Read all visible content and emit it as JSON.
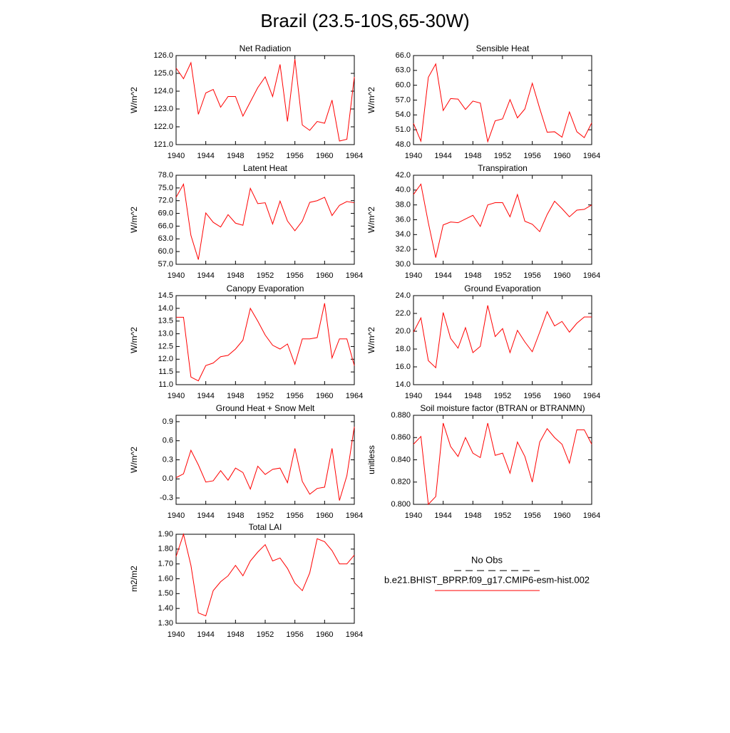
{
  "title": "Brazil (23.5-10S,65-30W)",
  "legend": [
    {
      "name": "No Obs",
      "color": "#000000",
      "dash": true
    },
    {
      "name": "b.e21.BHIST_BPRP.f09_g17.CMIP6-esm-hist.002",
      "color": "#ff0000",
      "dash": false
    }
  ],
  "chart_data": [
    {
      "type": "line",
      "title": "Net Radiation",
      "ylabel": "W/m^2",
      "x": [
        1940,
        1941,
        1942,
        1943,
        1944,
        1945,
        1946,
        1947,
        1948,
        1949,
        1950,
        1951,
        1952,
        1953,
        1954,
        1955,
        1956,
        1957,
        1958,
        1959,
        1960,
        1961,
        1962,
        1963,
        1964
      ],
      "series": [
        {
          "color": "#ff0000",
          "values": [
            125.3,
            124.7,
            125.6,
            122.7,
            123.9,
            124.1,
            123.1,
            123.7,
            123.7,
            122.6,
            123.4,
            124.2,
            124.8,
            123.7,
            125.5,
            122.3,
            125.8,
            122.1,
            121.8,
            122.3,
            122.2,
            123.5,
            121.2,
            121.3,
            124.8
          ]
        }
      ],
      "xlim": [
        1940,
        1964
      ],
      "xticks": [
        1940,
        1944,
        1948,
        1952,
        1956,
        1960,
        1964
      ],
      "ylim": [
        121,
        126
      ],
      "yticks": [
        {
          "value": 121,
          "label": "121.0"
        },
        {
          "value": 122,
          "label": "122.0"
        },
        {
          "value": 123,
          "label": "123.0"
        },
        {
          "value": 124,
          "label": "124.0"
        },
        {
          "value": 125,
          "label": "125.0"
        },
        {
          "value": 126,
          "label": "126.0"
        }
      ]
    },
    {
      "type": "line",
      "title": "Sensible Heat",
      "ylabel": "W/m^2",
      "x": [
        1940,
        1941,
        1942,
        1943,
        1944,
        1945,
        1946,
        1947,
        1948,
        1949,
        1950,
        1951,
        1952,
        1953,
        1954,
        1955,
        1956,
        1957,
        1958,
        1959,
        1960,
        1961,
        1962,
        1963,
        1964
      ],
      "series": [
        {
          "color": "#ff0000",
          "values": [
            52.3,
            48.7,
            61.6,
            64.3,
            54.9,
            57.3,
            57.2,
            55.1,
            56.8,
            56.4,
            48.6,
            52.8,
            53.2,
            57.1,
            53.4,
            55.2,
            60.4,
            55.3,
            50.5,
            50.6,
            49.5,
            54.6,
            50.6,
            49.4,
            52.4
          ]
        }
      ],
      "xlim": [
        1940,
        1964
      ],
      "xticks": [
        1940,
        1944,
        1948,
        1952,
        1956,
        1960,
        1964
      ],
      "ylim": [
        48,
        66
      ],
      "yticks": [
        {
          "value": 48,
          "label": "48.0"
        },
        {
          "value": 51,
          "label": "51.0"
        },
        {
          "value": 54,
          "label": "54.0"
        },
        {
          "value": 57,
          "label": "57.0"
        },
        {
          "value": 60,
          "label": "60.0"
        },
        {
          "value": 63,
          "label": "63.0"
        },
        {
          "value": 66,
          "label": "66.0"
        }
      ]
    },
    {
      "type": "line",
      "title": "Latent Heat",
      "ylabel": "W/m^2",
      "x": [
        1940,
        1941,
        1942,
        1943,
        1944,
        1945,
        1946,
        1947,
        1948,
        1949,
        1950,
        1951,
        1952,
        1953,
        1954,
        1955,
        1956,
        1957,
        1958,
        1959,
        1960,
        1961,
        1962,
        1963,
        1964
      ],
      "series": [
        {
          "color": "#ff0000",
          "values": [
            72.8,
            75.9,
            63.8,
            58.1,
            69.1,
            66.9,
            65.8,
            68.7,
            66.7,
            66.2,
            74.9,
            71.3,
            71.5,
            66.5,
            71.9,
            67.2,
            64.9,
            67.2,
            71.6,
            72.0,
            72.8,
            68.5,
            70.9,
            71.8,
            71.5
          ]
        }
      ],
      "xlim": [
        1940,
        1964
      ],
      "xticks": [
        1940,
        1944,
        1948,
        1952,
        1956,
        1960,
        1964
      ],
      "ylim": [
        57,
        78
      ],
      "yticks": [
        {
          "value": 57,
          "label": "57.0"
        },
        {
          "value": 60,
          "label": "60.0"
        },
        {
          "value": 63,
          "label": "63.0"
        },
        {
          "value": 66,
          "label": "66.0"
        },
        {
          "value": 69,
          "label": "69.0"
        },
        {
          "value": 72,
          "label": "72.0"
        },
        {
          "value": 75,
          "label": "75.0"
        },
        {
          "value": 78,
          "label": "78.0"
        }
      ]
    },
    {
      "type": "line",
      "title": "Transpiration",
      "ylabel": "W/m^2",
      "x": [
        1940,
        1941,
        1942,
        1943,
        1944,
        1945,
        1946,
        1947,
        1948,
        1949,
        1950,
        1951,
        1952,
        1953,
        1954,
        1955,
        1956,
        1957,
        1958,
        1959,
        1960,
        1961,
        1962,
        1963,
        1964
      ],
      "series": [
        {
          "color": "#ff0000",
          "values": [
            39.4,
            40.8,
            35.6,
            30.9,
            35.3,
            35.7,
            35.6,
            36.1,
            36.6,
            35.1,
            38.0,
            38.3,
            38.3,
            36.4,
            39.4,
            35.8,
            35.4,
            34.4,
            36.7,
            38.5,
            37.5,
            36.4,
            37.3,
            37.4,
            38.0
          ]
        }
      ],
      "xlim": [
        1940,
        1964
      ],
      "xticks": [
        1940,
        1944,
        1948,
        1952,
        1956,
        1960,
        1964
      ],
      "ylim": [
        30,
        42
      ],
      "yticks": [
        {
          "value": 30,
          "label": "30.0"
        },
        {
          "value": 32,
          "label": "32.0"
        },
        {
          "value": 34,
          "label": "34.0"
        },
        {
          "value": 36,
          "label": "36.0"
        },
        {
          "value": 38,
          "label": "38.0"
        },
        {
          "value": 40,
          "label": "40.0"
        },
        {
          "value": 42,
          "label": "42.0"
        }
      ]
    },
    {
      "type": "line",
      "title": "Canopy Evaporation",
      "ylabel": "W/m^2",
      "x": [
        1940,
        1941,
        1942,
        1943,
        1944,
        1945,
        1946,
        1947,
        1948,
        1949,
        1950,
        1951,
        1952,
        1953,
        1954,
        1955,
        1956,
        1957,
        1958,
        1959,
        1960,
        1961,
        1962,
        1963,
        1964
      ],
      "series": [
        {
          "color": "#ff0000",
          "values": [
            13.65,
            13.65,
            11.3,
            11.15,
            11.75,
            11.85,
            12.1,
            12.15,
            12.4,
            12.75,
            14.0,
            13.5,
            12.95,
            12.55,
            12.4,
            12.6,
            11.8,
            12.8,
            12.8,
            12.85,
            14.2,
            12.05,
            12.8,
            12.8,
            11.75
          ]
        }
      ],
      "xlim": [
        1940,
        1964
      ],
      "xticks": [
        1940,
        1944,
        1948,
        1952,
        1956,
        1960,
        1964
      ],
      "ylim": [
        11,
        14.5
      ],
      "yticks": [
        {
          "value": 11,
          "label": "11.0"
        },
        11.5,
        {
          "value": 12,
          "label": "12.0"
        },
        12.5,
        {
          "value": 13,
          "label": "13.0"
        },
        13.5,
        {
          "value": 14,
          "label": "14.0"
        },
        14.5
      ]
    },
    {
      "type": "line",
      "title": "Ground Evaporation",
      "ylabel": "W/m^2",
      "x": [
        1940,
        1941,
        1942,
        1943,
        1944,
        1945,
        1946,
        1947,
        1948,
        1949,
        1950,
        1951,
        1952,
        1953,
        1954,
        1955,
        1956,
        1957,
        1958,
        1959,
        1960,
        1961,
        1962,
        1963,
        1964
      ],
      "series": [
        {
          "color": "#ff0000",
          "values": [
            19.9,
            21.5,
            16.7,
            15.9,
            22.1,
            19.2,
            18.1,
            20.4,
            17.6,
            18.3,
            22.9,
            19.4,
            20.3,
            17.6,
            20.1,
            18.8,
            17.7,
            19.9,
            22.2,
            20.6,
            21.1,
            19.9,
            20.9,
            21.6,
            21.6
          ]
        }
      ],
      "xlim": [
        1940,
        1964
      ],
      "xticks": [
        1940,
        1944,
        1948,
        1952,
        1956,
        1960,
        1964
      ],
      "ylim": [
        14,
        24
      ],
      "yticks": [
        {
          "value": 14,
          "label": "14.0"
        },
        {
          "value": 16,
          "label": "16.0"
        },
        {
          "value": 18,
          "label": "18.0"
        },
        {
          "value": 20,
          "label": "20.0"
        },
        {
          "value": 22,
          "label": "22.0"
        },
        {
          "value": 24,
          "label": "24.0"
        }
      ]
    },
    {
      "type": "line",
      "title": "Ground Heat + Snow Melt",
      "ylabel": "W/m^2",
      "x": [
        1940,
        1941,
        1942,
        1943,
        1944,
        1945,
        1946,
        1947,
        1948,
        1949,
        1950,
        1951,
        1952,
        1953,
        1954,
        1955,
        1956,
        1957,
        1958,
        1959,
        1960,
        1961,
        1962,
        1963,
        1964
      ],
      "series": [
        {
          "color": "#ff0000",
          "values": [
            0.02,
            0.08,
            0.45,
            0.22,
            -0.05,
            -0.03,
            0.13,
            -0.02,
            0.17,
            0.1,
            -0.16,
            0.2,
            0.07,
            0.15,
            0.17,
            -0.06,
            0.48,
            -0.04,
            -0.24,
            -0.15,
            -0.13,
            0.48,
            -0.34,
            0.05,
            0.82
          ]
        }
      ],
      "xlim": [
        1940,
        1964
      ],
      "xticks": [
        1940,
        1944,
        1948,
        1952,
        1956,
        1960,
        1964
      ],
      "ylim": [
        -0.4,
        1.0
      ],
      "yticks": [
        -0.3,
        {
          "value": 0,
          "label": "0.0"
        },
        0.3,
        0.6,
        0.9
      ]
    },
    {
      "type": "line",
      "title": "Soil moisture factor (BTRAN or BTRANMN)",
      "ylabel": "unitless",
      "x": [
        1940,
        1941,
        1942,
        1943,
        1944,
        1945,
        1946,
        1947,
        1948,
        1949,
        1950,
        1951,
        1952,
        1953,
        1954,
        1955,
        1956,
        1957,
        1958,
        1959,
        1960,
        1961,
        1962,
        1963,
        1964
      ],
      "series": [
        {
          "color": "#ff0000",
          "values": [
            0.854,
            0.861,
            0.8,
            0.807,
            0.873,
            0.852,
            0.843,
            0.86,
            0.846,
            0.842,
            0.873,
            0.844,
            0.846,
            0.828,
            0.856,
            0.843,
            0.82,
            0.856,
            0.868,
            0.86,
            0.854,
            0.837,
            0.867,
            0.867,
            0.854
          ]
        }
      ],
      "xlim": [
        1940,
        1964
      ],
      "xticks": [
        1940,
        1944,
        1948,
        1952,
        1956,
        1960,
        1964
      ],
      "ylim": [
        0.8,
        0.88
      ],
      "yticks": [
        {
          "value": 0.8,
          "label": "0.800"
        },
        {
          "value": 0.82,
          "label": "0.820"
        },
        {
          "value": 0.84,
          "label": "0.840"
        },
        {
          "value": 0.86,
          "label": "0.860"
        },
        {
          "value": 0.88,
          "label": "0.880"
        }
      ]
    },
    {
      "type": "line",
      "title": "Total LAI",
      "ylabel": "m2/m2",
      "x": [
        1940,
        1941,
        1942,
        1943,
        1944,
        1945,
        1946,
        1947,
        1948,
        1949,
        1950,
        1951,
        1952,
        1953,
        1954,
        1955,
        1956,
        1957,
        1958,
        1959,
        1960,
        1961,
        1962,
        1963,
        1964
      ],
      "series": [
        {
          "color": "#ff0000",
          "values": [
            1.75,
            1.9,
            1.69,
            1.37,
            1.35,
            1.52,
            1.58,
            1.62,
            1.69,
            1.62,
            1.72,
            1.78,
            1.83,
            1.72,
            1.74,
            1.67,
            1.57,
            1.52,
            1.64,
            1.87,
            1.85,
            1.79,
            1.7,
            1.7,
            1.76
          ]
        }
      ],
      "xlim": [
        1940,
        1964
      ],
      "xticks": [
        1940,
        1944,
        1948,
        1952,
        1956,
        1960,
        1964
      ],
      "ylim": [
        1.3,
        1.9
      ],
      "yticks": [
        {
          "value": 1.3,
          "label": "1.30"
        },
        {
          "value": 1.4,
          "label": "1.40"
        },
        {
          "value": 1.5,
          "label": "1.50"
        },
        {
          "value": 1.6,
          "label": "1.60"
        },
        {
          "value": 1.7,
          "label": "1.70"
        },
        {
          "value": 1.8,
          "label": "1.80"
        },
        {
          "value": 1.9,
          "label": "1.90"
        }
      ]
    }
  ]
}
